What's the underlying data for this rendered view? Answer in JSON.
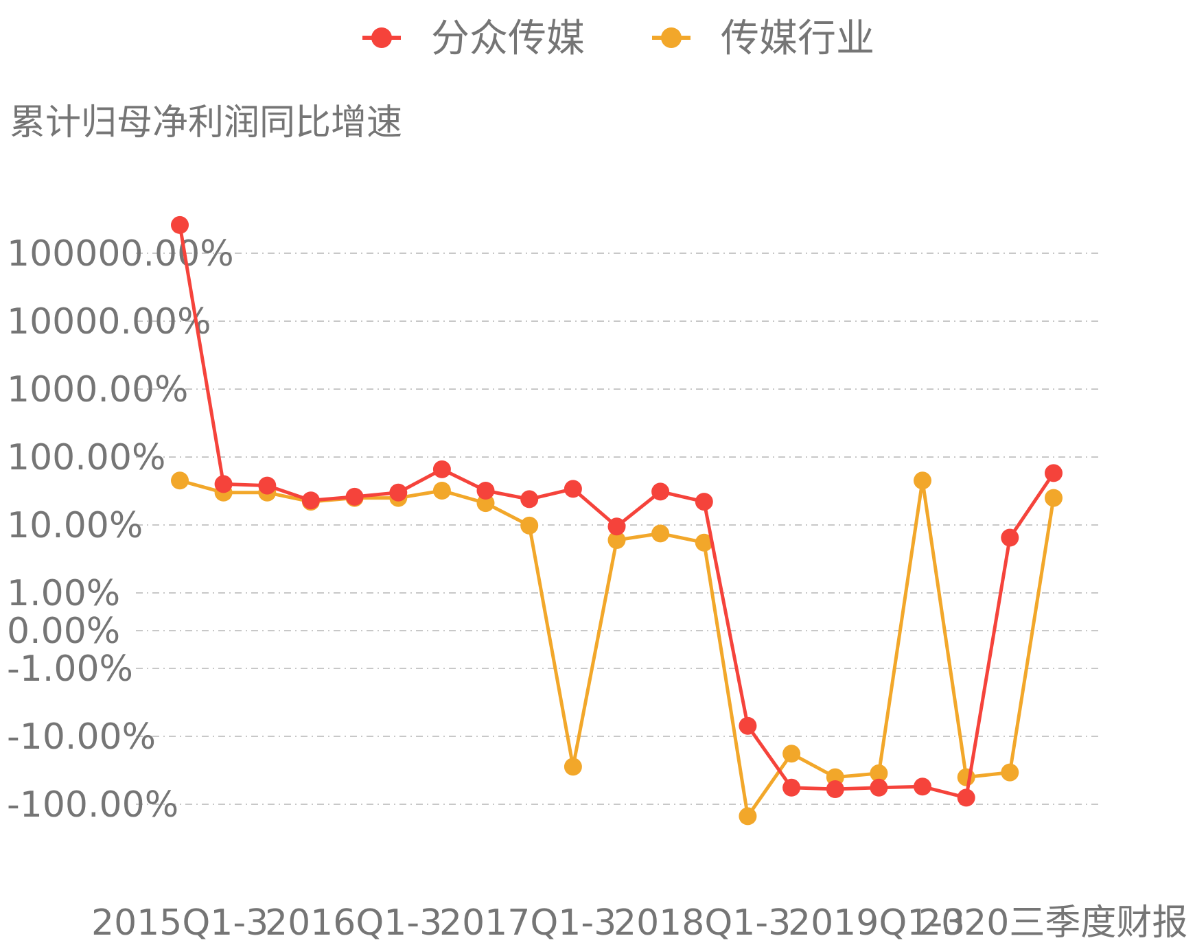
{
  "chart_data": {
    "type": "line",
    "ylabel": "累计归母净利润同比增速",
    "yscale": "symlog",
    "y_ticks": [
      "100000.00%",
      "10000.00%",
      "1000.00%",
      "100.00%",
      "10.00%",
      "1.00%",
      "0.00%",
      "-1.00%",
      "-10.00%",
      "-100.00%"
    ],
    "x_tick_labels": [
      "2015Q1-3",
      "2016Q1-3",
      "2017Q1-3",
      "2018Q1-3",
      "2019Q1-3",
      "2020三季度财报"
    ],
    "grid": true,
    "legend_position": "top",
    "series": [
      {
        "name": "分众传媒",
        "color": "#f5433b",
        "values": [
          260000,
          40,
          38,
          23,
          26,
          30,
          66,
          32,
          24,
          34,
          9.5,
          31,
          22,
          -7,
          -57,
          -60,
          -57,
          -55,
          -80,
          6.5,
          58
        ]
      },
      {
        "name": "传媒行业",
        "color": "#f2a72a",
        "values": [
          45,
          30,
          30,
          22,
          25,
          25,
          32,
          21,
          9.8,
          -28,
          6,
          7.5,
          5.5,
          -150,
          -18,
          -40,
          -35,
          45,
          -40,
          -34,
          25
        ]
      }
    ]
  }
}
